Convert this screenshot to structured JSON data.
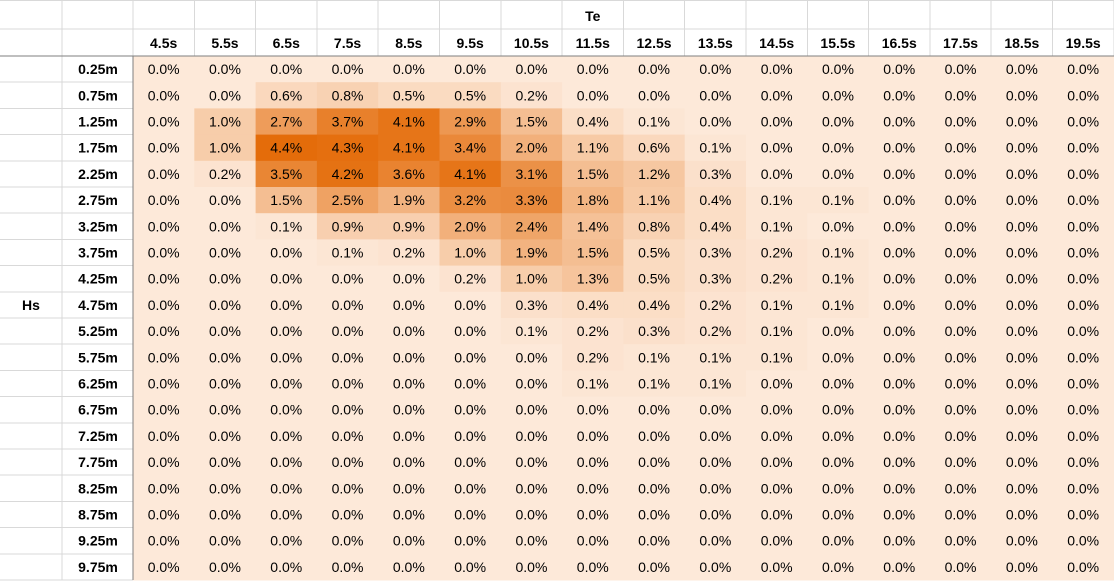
{
  "chart_data": {
    "type": "heatmap",
    "col_axis_label": "Te",
    "row_axis_label": "Hs",
    "columns": [
      "4.5s",
      "5.5s",
      "6.5s",
      "7.5s",
      "8.5s",
      "9.5s",
      "10.5s",
      "11.5s",
      "12.5s",
      "13.5s",
      "14.5s",
      "15.5s",
      "16.5s",
      "17.5s",
      "18.5s",
      "19.5s"
    ],
    "rows": [
      "0.25m",
      "0.75m",
      "1.25m",
      "1.75m",
      "2.25m",
      "2.75m",
      "3.25m",
      "3.75m",
      "4.25m",
      "4.75m",
      "5.25m",
      "5.75m",
      "6.25m",
      "6.75m",
      "7.25m",
      "7.75m",
      "8.25m",
      "8.75m",
      "9.25m",
      "9.75m"
    ],
    "values": [
      [
        0.0,
        0.0,
        0.0,
        0.0,
        0.0,
        0.0,
        0.0,
        0.0,
        0.0,
        0.0,
        0.0,
        0.0,
        0.0,
        0.0,
        0.0,
        0.0
      ],
      [
        0.0,
        0.0,
        0.6,
        0.8,
        0.5,
        0.5,
        0.2,
        0.0,
        0.0,
        0.0,
        0.0,
        0.0,
        0.0,
        0.0,
        0.0,
        0.0
      ],
      [
        0.0,
        1.0,
        2.7,
        3.7,
        4.1,
        2.9,
        1.5,
        0.4,
        0.1,
        0.0,
        0.0,
        0.0,
        0.0,
        0.0,
        0.0,
        0.0
      ],
      [
        0.0,
        1.0,
        4.4,
        4.3,
        4.1,
        3.4,
        2.0,
        1.1,
        0.6,
        0.1,
        0.0,
        0.0,
        0.0,
        0.0,
        0.0,
        0.0
      ],
      [
        0.0,
        0.2,
        3.5,
        4.2,
        3.6,
        4.1,
        3.1,
        1.5,
        1.2,
        0.3,
        0.0,
        0.0,
        0.0,
        0.0,
        0.0,
        0.0
      ],
      [
        0.0,
        0.0,
        1.5,
        2.5,
        1.9,
        3.2,
        3.3,
        1.8,
        1.1,
        0.4,
        0.1,
        0.1,
        0.0,
        0.0,
        0.0,
        0.0
      ],
      [
        0.0,
        0.0,
        0.1,
        0.9,
        0.9,
        2.0,
        2.4,
        1.4,
        0.8,
        0.4,
        0.1,
        0.0,
        0.0,
        0.0,
        0.0,
        0.0
      ],
      [
        0.0,
        0.0,
        0.0,
        0.1,
        0.2,
        1.0,
        1.9,
        1.5,
        0.5,
        0.3,
        0.2,
        0.1,
        0.0,
        0.0,
        0.0,
        0.0
      ],
      [
        0.0,
        0.0,
        0.0,
        0.0,
        0.0,
        0.2,
        1.0,
        1.3,
        0.5,
        0.3,
        0.2,
        0.1,
        0.0,
        0.0,
        0.0,
        0.0
      ],
      [
        0.0,
        0.0,
        0.0,
        0.0,
        0.0,
        0.0,
        0.3,
        0.4,
        0.4,
        0.2,
        0.1,
        0.1,
        0.0,
        0.0,
        0.0,
        0.0
      ],
      [
        0.0,
        0.0,
        0.0,
        0.0,
        0.0,
        0.0,
        0.1,
        0.2,
        0.3,
        0.2,
        0.1,
        0.0,
        0.0,
        0.0,
        0.0,
        0.0
      ],
      [
        0.0,
        0.0,
        0.0,
        0.0,
        0.0,
        0.0,
        0.0,
        0.2,
        0.1,
        0.1,
        0.1,
        0.0,
        0.0,
        0.0,
        0.0,
        0.0
      ],
      [
        0.0,
        0.0,
        0.0,
        0.0,
        0.0,
        0.0,
        0.0,
        0.1,
        0.1,
        0.1,
        0.0,
        0.0,
        0.0,
        0.0,
        0.0,
        0.0
      ],
      [
        0.0,
        0.0,
        0.0,
        0.0,
        0.0,
        0.0,
        0.0,
        0.0,
        0.0,
        0.0,
        0.0,
        0.0,
        0.0,
        0.0,
        0.0,
        0.0
      ],
      [
        0.0,
        0.0,
        0.0,
        0.0,
        0.0,
        0.0,
        0.0,
        0.0,
        0.0,
        0.0,
        0.0,
        0.0,
        0.0,
        0.0,
        0.0,
        0.0
      ],
      [
        0.0,
        0.0,
        0.0,
        0.0,
        0.0,
        0.0,
        0.0,
        0.0,
        0.0,
        0.0,
        0.0,
        0.0,
        0.0,
        0.0,
        0.0,
        0.0
      ],
      [
        0.0,
        0.0,
        0.0,
        0.0,
        0.0,
        0.0,
        0.0,
        0.0,
        0.0,
        0.0,
        0.0,
        0.0,
        0.0,
        0.0,
        0.0,
        0.0
      ],
      [
        0.0,
        0.0,
        0.0,
        0.0,
        0.0,
        0.0,
        0.0,
        0.0,
        0.0,
        0.0,
        0.0,
        0.0,
        0.0,
        0.0,
        0.0,
        0.0
      ],
      [
        0.0,
        0.0,
        0.0,
        0.0,
        0.0,
        0.0,
        0.0,
        0.0,
        0.0,
        0.0,
        0.0,
        0.0,
        0.0,
        0.0,
        0.0,
        0.0
      ],
      [
        0.0,
        0.0,
        0.0,
        0.0,
        0.0,
        0.0,
        0.0,
        0.0,
        0.0,
        0.0,
        0.0,
        0.0,
        0.0,
        0.0,
        0.0,
        0.0
      ]
    ],
    "value_suffix": "%",
    "colors": {
      "low": "#fde9d9",
      "high": "#e46c0a"
    }
  }
}
